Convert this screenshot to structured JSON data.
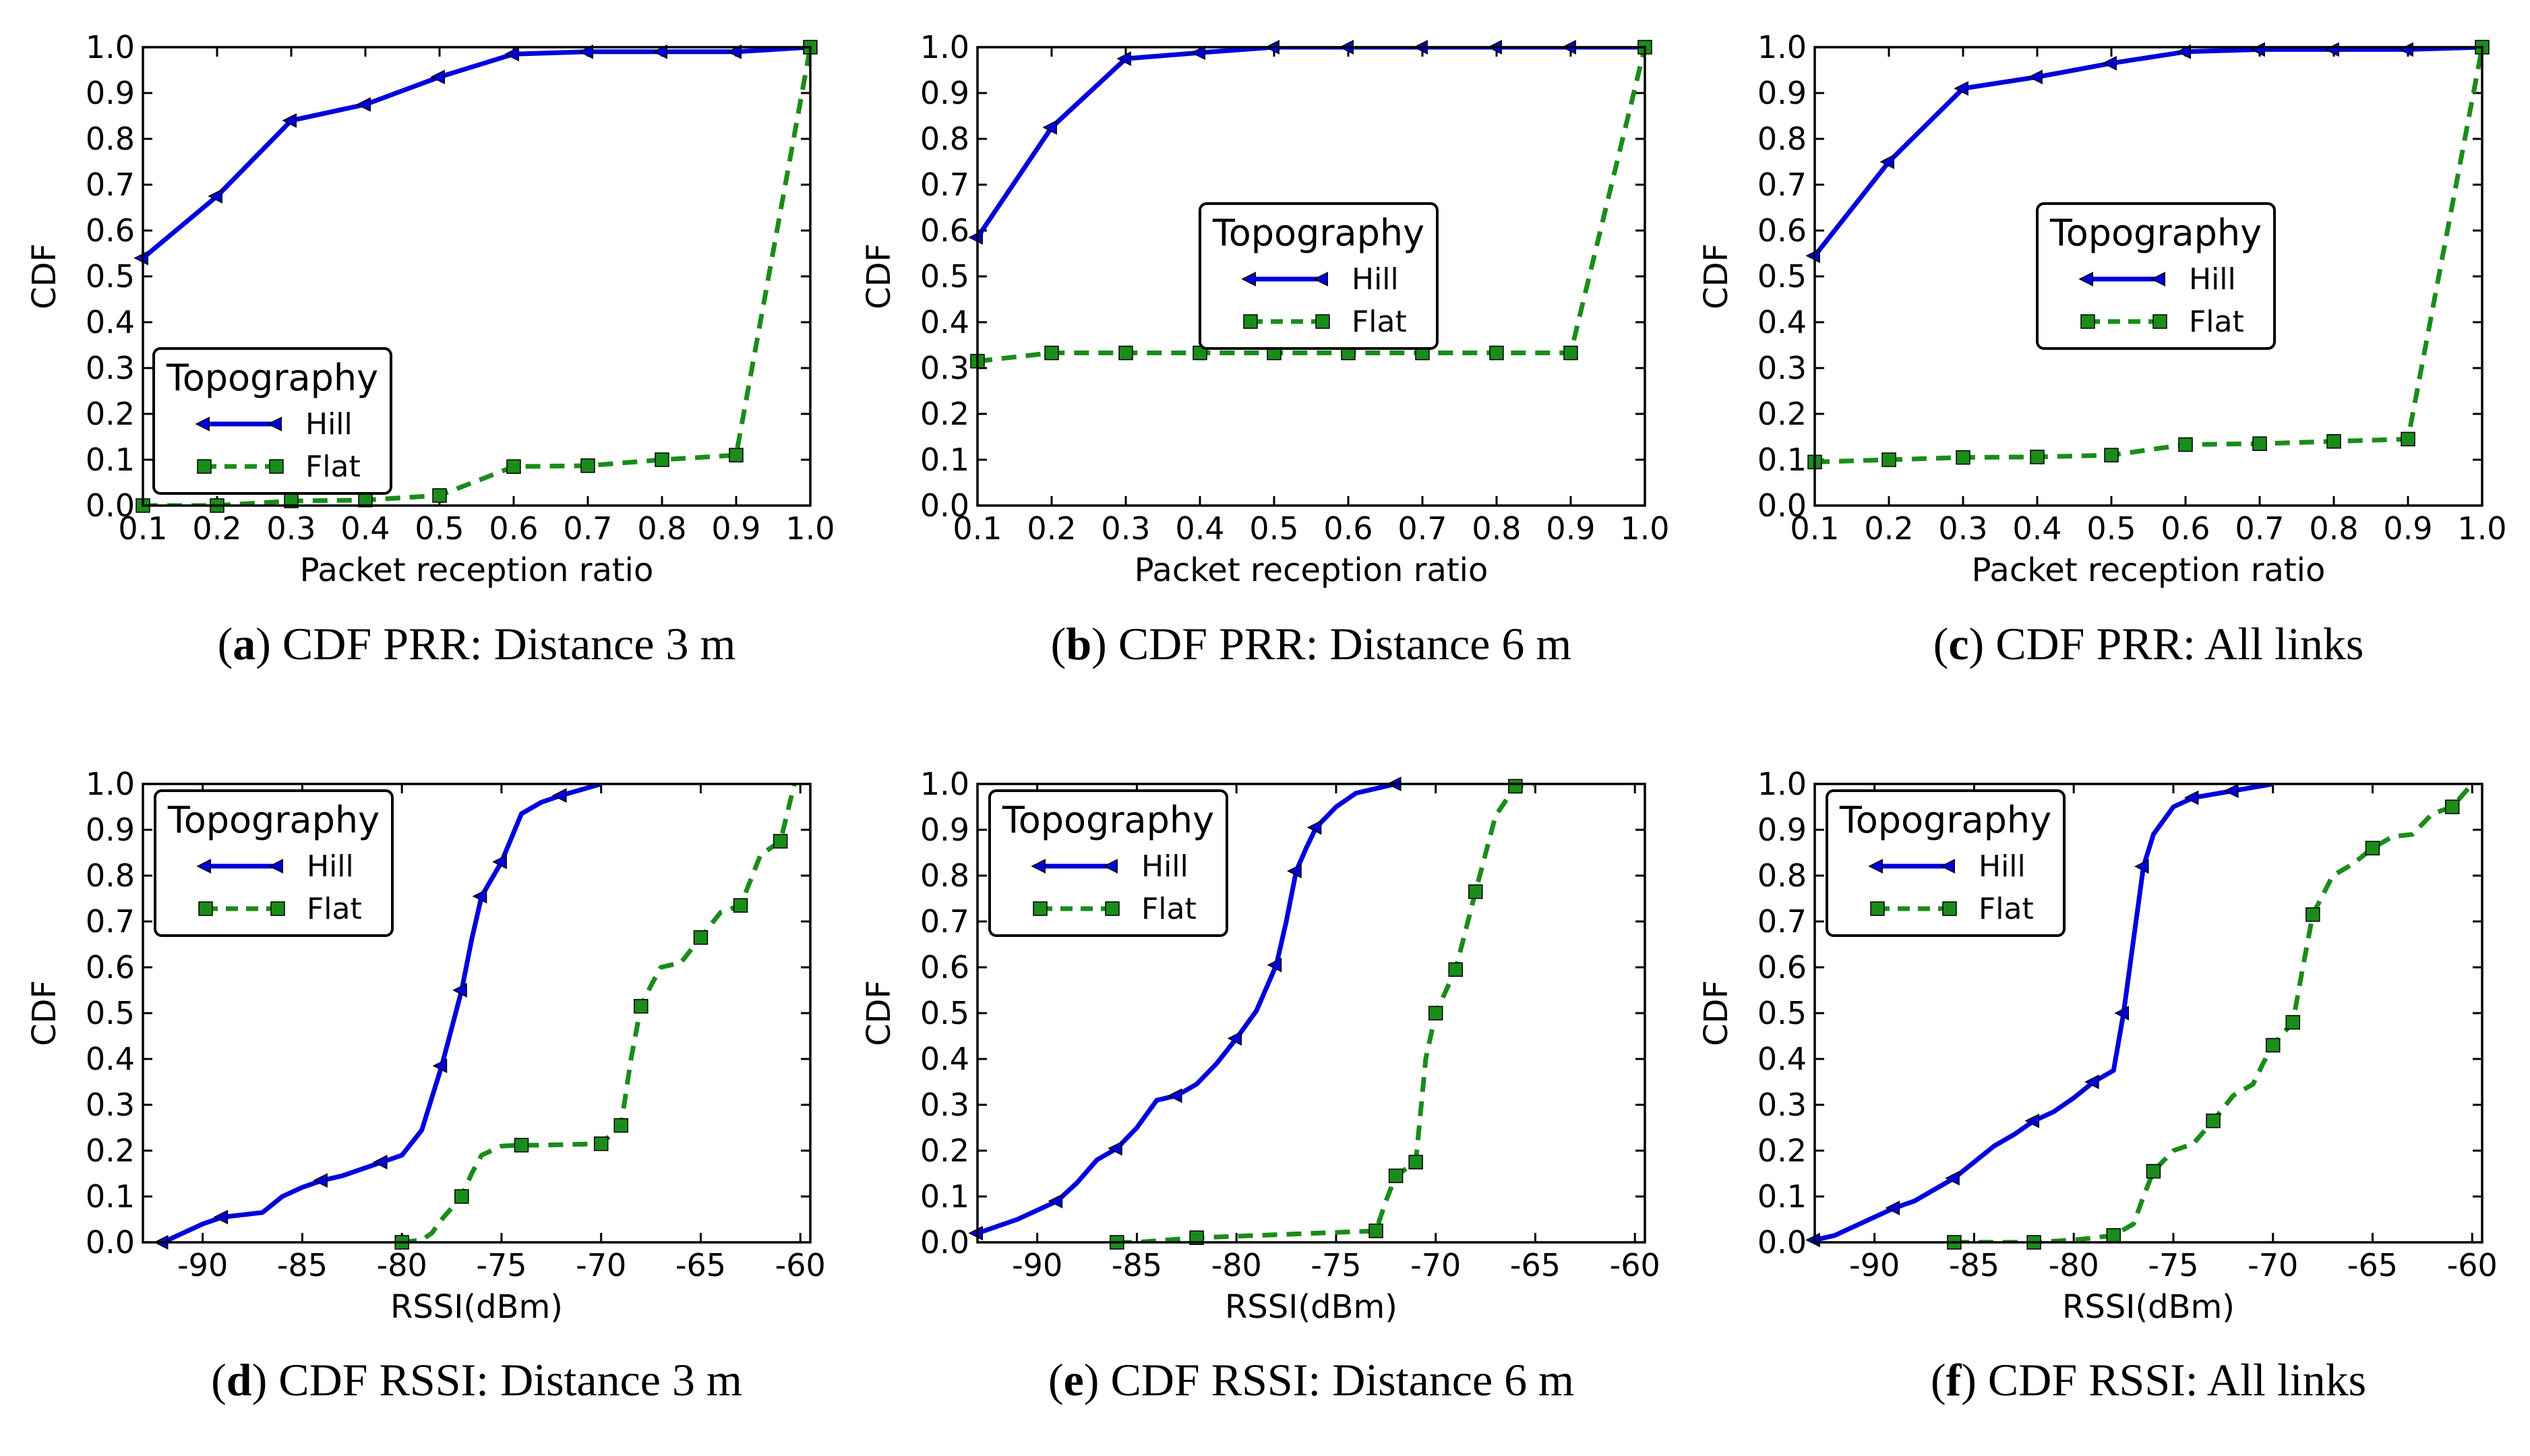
{
  "colors": {
    "hill": "#0000dd",
    "flat": "#1a8c1a",
    "axis": "#000000"
  },
  "chart_data": [
    {
      "id": "a",
      "type": "line",
      "caption_letter": "a",
      "caption_text": "CDF PRR: Distance 3 m",
      "xlabel": "Packet reception ratio",
      "ylabel": "CDF",
      "xlim": [
        0.1,
        1.0
      ],
      "ylim": [
        0.0,
        1.0
      ],
      "xticks": [
        "0.1",
        "0.2",
        "0.3",
        "0.4",
        "0.5",
        "0.6",
        "0.7",
        "0.8",
        "0.9",
        "1.0"
      ],
      "yticks": [
        "0.0",
        "0.1",
        "0.2",
        "0.3",
        "0.4",
        "0.5",
        "0.6",
        "0.7",
        "0.8",
        "0.9",
        "1.0"
      ],
      "legend": {
        "title": "Topography",
        "position": "lower-left"
      },
      "series": [
        {
          "name": "Hill",
          "style": "solid-triangle",
          "x": [
            0.1,
            0.2,
            0.3,
            0.4,
            0.5,
            0.6,
            0.7,
            0.8,
            0.9,
            1.0
          ],
          "y": [
            0.54,
            0.675,
            0.84,
            0.875,
            0.935,
            0.985,
            0.99,
            0.99,
            0.99,
            1.0
          ]
        },
        {
          "name": "Flat",
          "style": "dashed-square",
          "x": [
            0.1,
            0.2,
            0.3,
            0.4,
            0.5,
            0.6,
            0.7,
            0.8,
            0.9,
            1.0
          ],
          "y": [
            0.0,
            0.0,
            0.01,
            0.012,
            0.022,
            0.085,
            0.087,
            0.1,
            0.11,
            1.0
          ]
        }
      ]
    },
    {
      "id": "b",
      "type": "line",
      "caption_letter": "b",
      "caption_text": "CDF PRR: Distance 6 m",
      "xlabel": "Packet reception ratio",
      "ylabel": "CDF",
      "xlim": [
        0.1,
        1.0
      ],
      "ylim": [
        0.0,
        1.0
      ],
      "xticks": [
        "0.1",
        "0.2",
        "0.3",
        "0.4",
        "0.5",
        "0.6",
        "0.7",
        "0.8",
        "0.9",
        "1.0"
      ],
      "yticks": [
        "0.0",
        "0.1",
        "0.2",
        "0.3",
        "0.4",
        "0.5",
        "0.6",
        "0.7",
        "0.8",
        "0.9",
        "1.0"
      ],
      "legend": {
        "title": "Topography",
        "position": "center"
      },
      "series": [
        {
          "name": "Hill",
          "style": "solid-triangle",
          "x": [
            0.1,
            0.2,
            0.3,
            0.4,
            0.5,
            0.6,
            0.7,
            0.8,
            0.9,
            1.0
          ],
          "y": [
            0.585,
            0.825,
            0.975,
            0.988,
            1.0,
            1.0,
            1.0,
            1.0,
            1.0,
            1.0
          ]
        },
        {
          "name": "Flat",
          "style": "dashed-square",
          "x": [
            0.1,
            0.2,
            0.3,
            0.4,
            0.5,
            0.6,
            0.7,
            0.8,
            0.9,
            1.0
          ],
          "y": [
            0.315,
            0.333,
            0.333,
            0.333,
            0.333,
            0.333,
            0.333,
            0.333,
            0.333,
            1.0
          ]
        }
      ]
    },
    {
      "id": "c",
      "type": "line",
      "caption_letter": "c",
      "caption_text": "CDF PRR: All links",
      "xlabel": "Packet reception ratio",
      "ylabel": "CDF",
      "xlim": [
        0.1,
        1.0
      ],
      "ylim": [
        0.0,
        1.0
      ],
      "xticks": [
        "0.1",
        "0.2",
        "0.3",
        "0.4",
        "0.5",
        "0.6",
        "0.7",
        "0.8",
        "0.9",
        "1.0"
      ],
      "yticks": [
        "0.0",
        "0.1",
        "0.2",
        "0.3",
        "0.4",
        "0.5",
        "0.6",
        "0.7",
        "0.8",
        "0.9",
        "1.0"
      ],
      "legend": {
        "title": "Topography",
        "position": "center"
      },
      "series": [
        {
          "name": "Hill",
          "style": "solid-triangle",
          "x": [
            0.1,
            0.2,
            0.3,
            0.4,
            0.5,
            0.6,
            0.7,
            0.8,
            0.9,
            1.0
          ],
          "y": [
            0.545,
            0.75,
            0.91,
            0.935,
            0.965,
            0.99,
            0.995,
            0.995,
            0.995,
            1.0
          ]
        },
        {
          "name": "Flat",
          "style": "dashed-square",
          "x": [
            0.1,
            0.2,
            0.3,
            0.4,
            0.5,
            0.6,
            0.7,
            0.8,
            0.9,
            1.0
          ],
          "y": [
            0.095,
            0.1,
            0.105,
            0.106,
            0.11,
            0.133,
            0.135,
            0.14,
            0.145,
            1.0
          ]
        }
      ]
    },
    {
      "id": "d",
      "type": "line",
      "caption_letter": "d",
      "caption_text": "CDF RSSI: Distance 3 m",
      "xlabel": "RSSI(dBm)",
      "ylabel": "CDF",
      "xlim": [
        -93,
        -59.5
      ],
      "ylim": [
        0.0,
        1.0
      ],
      "xticks": [
        "-90",
        "-85",
        "-80",
        "-75",
        "-70",
        "-65",
        "-60"
      ],
      "xtick_values": [
        -90,
        -85,
        -80,
        -75,
        -70,
        -65,
        -60
      ],
      "yticks": [
        "0.0",
        "0.1",
        "0.2",
        "0.3",
        "0.4",
        "0.5",
        "0.6",
        "0.7",
        "0.8",
        "0.9",
        "1.0"
      ],
      "legend": {
        "title": "Topography",
        "position": "upper-left"
      },
      "series": [
        {
          "name": "Hill",
          "style": "solid-triangle",
          "x": [
            -92,
            -91,
            -90,
            -89,
            -87,
            -86,
            -85,
            -84,
            -83,
            -82,
            -81,
            -80,
            -79,
            -78,
            -77,
            -76.5,
            -76,
            -75,
            -74,
            -73,
            -72,
            -70
          ],
          "y": [
            0.0,
            0.02,
            0.04,
            0.055,
            0.065,
            0.1,
            0.12,
            0.135,
            0.145,
            0.16,
            0.175,
            0.19,
            0.245,
            0.385,
            0.55,
            0.66,
            0.755,
            0.83,
            0.935,
            0.96,
            0.975,
            1.0
          ],
          "markers_x": [
            -92,
            -89,
            -84,
            -81,
            -78,
            -77,
            -76,
            -75,
            -72
          ]
        },
        {
          "name": "Flat",
          "style": "dashed-square",
          "x": [
            -80,
            -79,
            -78.5,
            -78,
            -77,
            -76.5,
            -76,
            -75,
            -74,
            -73,
            -70,
            -69,
            -68.5,
            -68,
            -67.5,
            -67,
            -66,
            -65,
            -64,
            -63,
            -62,
            -61,
            -60.3
          ],
          "y": [
            0.0,
            0.005,
            0.02,
            0.05,
            0.1,
            0.15,
            0.19,
            0.21,
            0.212,
            0.212,
            0.215,
            0.255,
            0.4,
            0.515,
            0.56,
            0.6,
            0.61,
            0.665,
            0.72,
            0.735,
            0.845,
            0.875,
            1.0
          ],
          "markers_x": [
            -80,
            -77,
            -74,
            -70,
            -69,
            -68,
            -65,
            -63,
            -61
          ]
        }
      ]
    },
    {
      "id": "e",
      "type": "line",
      "caption_letter": "e",
      "caption_text": "CDF RSSI: Distance 6 m",
      "xlabel": "RSSI(dBm)",
      "ylabel": "CDF",
      "xlim": [
        -93,
        -59.5
      ],
      "ylim": [
        0.0,
        1.0
      ],
      "xticks": [
        "-90",
        "-85",
        "-80",
        "-75",
        "-70",
        "-65",
        "-60"
      ],
      "xtick_values": [
        -90,
        -85,
        -80,
        -75,
        -70,
        -65,
        -60
      ],
      "yticks": [
        "0.0",
        "0.1",
        "0.2",
        "0.3",
        "0.4",
        "0.5",
        "0.6",
        "0.7",
        "0.8",
        "0.9",
        "1.0"
      ],
      "legend": {
        "title": "Topography",
        "position": "upper-left"
      },
      "series": [
        {
          "name": "Hill",
          "style": "solid-triangle",
          "x": [
            -93,
            -92,
            -91,
            -90,
            -89,
            -88,
            -87,
            -86,
            -85,
            -84,
            -83,
            -82,
            -81,
            -80,
            -79,
            -78,
            -77.5,
            -77,
            -76.5,
            -76,
            -75,
            -74,
            -72
          ],
          "y": [
            0.02,
            0.035,
            0.05,
            0.07,
            0.09,
            0.13,
            0.18,
            0.205,
            0.25,
            0.31,
            0.32,
            0.345,
            0.39,
            0.445,
            0.505,
            0.605,
            0.7,
            0.81,
            0.86,
            0.905,
            0.95,
            0.98,
            1.0
          ],
          "markers_x": [
            -93,
            -89,
            -86,
            -83,
            -80,
            -78,
            -77,
            -76,
            -72
          ]
        },
        {
          "name": "Flat",
          "style": "dashed-square",
          "x": [
            -86,
            -85,
            -82,
            -79,
            -76,
            -73,
            -72.5,
            -72,
            -71,
            -70.5,
            -70,
            -69,
            -68.5,
            -68,
            -67,
            -66,
            -65
          ],
          "y": [
            0.0,
            0.0,
            0.01,
            0.015,
            0.02,
            0.025,
            0.09,
            0.145,
            0.175,
            0.4,
            0.5,
            0.595,
            0.68,
            0.765,
            0.93,
            0.995,
            1.0
          ],
          "markers_x": [
            -86,
            -82,
            -73,
            -72,
            -71,
            -70,
            -69,
            -68,
            -66
          ]
        }
      ]
    },
    {
      "id": "f",
      "type": "line",
      "caption_letter": "f",
      "caption_text": "CDF RSSI: All links",
      "xlabel": "RSSI(dBm)",
      "ylabel": "CDF",
      "xlim": [
        -93,
        -59.5
      ],
      "ylim": [
        0.0,
        1.0
      ],
      "xticks": [
        "-90",
        "-85",
        "-80",
        "-75",
        "-70",
        "-65",
        "-60"
      ],
      "xtick_values": [
        -90,
        -85,
        -80,
        -75,
        -70,
        -65,
        -60
      ],
      "yticks": [
        "0.0",
        "0.1",
        "0.2",
        "0.3",
        "0.4",
        "0.5",
        "0.6",
        "0.7",
        "0.8",
        "0.9",
        "1.0"
      ],
      "legend": {
        "title": "Topography",
        "position": "upper-left"
      },
      "series": [
        {
          "name": "Hill",
          "style": "solid-triangle",
          "x": [
            -93,
            -92,
            -91,
            -90,
            -89,
            -88,
            -87,
            -86,
            -85,
            -84,
            -83,
            -82,
            -81,
            -80,
            -79,
            -78,
            -77.5,
            -77,
            -76.5,
            -76,
            -75,
            -74,
            -72,
            -70
          ],
          "y": [
            0.005,
            0.015,
            0.035,
            0.055,
            0.075,
            0.09,
            0.115,
            0.14,
            0.175,
            0.21,
            0.235,
            0.265,
            0.285,
            0.315,
            0.35,
            0.375,
            0.5,
            0.66,
            0.82,
            0.89,
            0.95,
            0.97,
            0.985,
            1.0
          ],
          "markers_x": [
            -93,
            -89,
            -86,
            -82,
            -79,
            -77.5,
            -76.5,
            -74,
            -72
          ]
        },
        {
          "name": "Flat",
          "style": "dashed-square",
          "x": [
            -86,
            -84,
            -82,
            -80,
            -78,
            -77,
            -76.5,
            -76,
            -75,
            -74,
            -73,
            -72,
            -71,
            -70.5,
            -70,
            -69,
            -68.5,
            -68,
            -67,
            -66,
            -65,
            -64,
            -63,
            -62,
            -61,
            -60
          ],
          "y": [
            0.0,
            0.0,
            0.0,
            0.005,
            0.015,
            0.04,
            0.1,
            0.155,
            0.2,
            0.215,
            0.265,
            0.32,
            0.345,
            0.39,
            0.43,
            0.48,
            0.6,
            0.715,
            0.8,
            0.825,
            0.86,
            0.885,
            0.89,
            0.935,
            0.95,
            1.0
          ],
          "markers_x": [
            -86,
            -82,
            -78,
            -76,
            -73,
            -70,
            -69,
            -68,
            -65,
            -61
          ]
        }
      ]
    }
  ]
}
